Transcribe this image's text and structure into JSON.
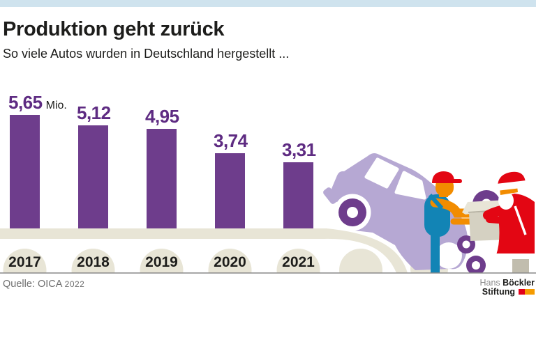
{
  "header": {
    "title": "Produktion geht zurück",
    "subtitle": "So viele Autos wurden in Deutschland hergestellt ..."
  },
  "chart_data": {
    "type": "bar",
    "title": "Produktion geht zurück",
    "subtitle": "So viele Autos wurden in Deutschland hergestellt ...",
    "categories": [
      "2017",
      "2018",
      "2019",
      "2020",
      "2021"
    ],
    "values": [
      5.65,
      5.12,
      4.95,
      3.74,
      3.31
    ],
    "value_labels": [
      "5,65",
      "5,12",
      "4,95",
      "3,74",
      "3,31"
    ],
    "unit": "Mio.",
    "unit_on_first_only": true,
    "ylim": [
      0,
      5.65
    ],
    "grid": false,
    "legend": "none",
    "xlabel": "",
    "ylabel": ""
  },
  "source": {
    "label": "Quelle: OICA",
    "year": "2022"
  },
  "logo": {
    "line1_light": "Hans",
    "line1_bold": "Böckler",
    "line2_bold": "Stiftung"
  },
  "illustration": {
    "icons": [
      "conveyor-belt",
      "belt-roller",
      "car-illustration",
      "worker-figure",
      "santa-figure",
      "cardboard-box",
      "tire-donut"
    ]
  },
  "colors": {
    "bar_purple": "#6e3d8c",
    "value_purple": "#5e2b82",
    "top_strip_blue": "#cfe3ee",
    "belt_beige": "#e8e5d6",
    "car_light_purple": "#b6a8d3",
    "figure_red": "#e30613",
    "figure_orange": "#f28c00",
    "figure_blue": "#1284b5",
    "box_beige": "#d5d1c2",
    "divider_gray": "#8a8a8a",
    "flag_red": "#e2001a",
    "flag_orange": "#f59b00"
  }
}
